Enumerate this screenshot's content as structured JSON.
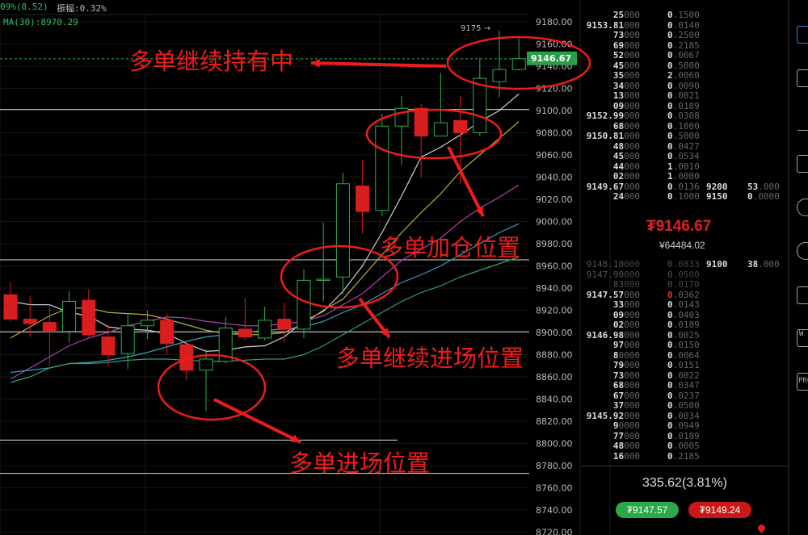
{
  "header": {
    "change": "09%(8.52)",
    "amplitude": "振幅:0.32%",
    "ma30": "MA(30):8970.29"
  },
  "colors": {
    "up": "#2fae4e",
    "down": "#d81e1e",
    "annotation": "#ee1c1c",
    "ma_lines": [
      "#cfcfcf",
      "#b9b040",
      "#b040b0",
      "#3aa0c0",
      "#30a070"
    ]
  },
  "price_axis": {
    "ticks": [
      "9180.00",
      "9160.00",
      "9140.00",
      "9120.00",
      "9100.00",
      "9080.00",
      "9060.00",
      "9040.00",
      "9020.00",
      "9000.00",
      "8980.00",
      "8960.00",
      "8940.00",
      "8920.00",
      "8900.00",
      "8880.00",
      "8860.00",
      "8840.00",
      "8820.00",
      "8800.00",
      "8780.00",
      "8760.00",
      "8740.00",
      "8720.00"
    ],
    "current": "9146.67",
    "high_marker": "9175 →"
  },
  "candles": [
    [
      8934,
      8946,
      8910,
      8912
    ],
    [
      8912,
      8933,
      8896,
      8908
    ],
    [
      8909,
      8925,
      8870,
      8901
    ],
    [
      8901,
      8937,
      8891,
      8928
    ],
    [
      8929,
      8939,
      8896,
      8898
    ],
    [
      8896,
      8907,
      8869,
      8880
    ],
    [
      8881,
      8917,
      8867,
      8906
    ],
    [
      8906,
      8920,
      8894,
      8911
    ],
    [
      8911,
      8917,
      8880,
      8890
    ],
    [
      8889,
      8891,
      8857,
      8866
    ],
    [
      8866,
      8885,
      8829,
      8876
    ],
    [
      8874,
      8914,
      8872,
      8904
    ],
    [
      8903,
      8931,
      8893,
      8896
    ],
    [
      8895,
      8923,
      8893,
      8911
    ],
    [
      8912,
      8927,
      8891,
      8903
    ],
    [
      8903,
      8957,
      8895,
      8947
    ],
    [
      8947,
      8999,
      8928,
      8948
    ],
    [
      8950,
      9044,
      8935,
      9034
    ],
    [
      9032,
      9056,
      8989,
      9009
    ],
    [
      9010,
      9097,
      9005,
      9086
    ],
    [
      9086,
      9113,
      9051,
      9102
    ],
    [
      9102,
      9106,
      9040,
      9077
    ],
    [
      9077,
      9134,
      9077,
      9089
    ],
    [
      9091,
      9113,
      9034,
      9080
    ],
    [
      9080,
      9147,
      9077,
      9129
    ],
    [
      9126,
      9172,
      9112,
      9137
    ],
    [
      9137,
      9165,
      9136,
      9146.67
    ]
  ],
  "ma": [
    [
      8928,
      8925,
      8925,
      8918,
      8915,
      8905,
      8903,
      8902,
      8899,
      8890,
      8883,
      8884,
      8887,
      8888,
      8896,
      8910,
      8919,
      8937,
      8960,
      8990,
      9023,
      9058,
      9067,
      9078,
      9090,
      9100,
      9115
    ],
    [
      8895,
      8905,
      8915,
      8922,
      8922,
      8918,
      8917,
      8916,
      8912,
      8907,
      8902,
      8899,
      8898,
      8898,
      8900,
      8908,
      8920,
      8930,
      8950,
      8970,
      8990,
      9008,
      9025,
      9045,
      9060,
      9075,
      9090
    ],
    [
      8858,
      8868,
      8878,
      8888,
      8895,
      8900,
      8906,
      8910,
      8914,
      8913,
      8910,
      8908,
      8906,
      8906,
      8908,
      8910,
      8915,
      8925,
      8935,
      8950,
      8965,
      8975,
      8985,
      9000,
      9012,
      9022,
      9033
    ],
    [
      8864,
      8866,
      8868,
      8872,
      8873,
      8875,
      8878,
      8882,
      8887,
      8892,
      8896,
      8898,
      8900,
      8902,
      8903,
      8905,
      8910,
      8918,
      8925,
      8935,
      8945,
      8952,
      8960,
      8970,
      8980,
      8990,
      8998
    ],
    [
      8855,
      8860,
      8868,
      8872,
      8872,
      8873,
      8875,
      8876,
      8876,
      8875,
      8874,
      8874,
      8875,
      8876,
      8876,
      8880,
      8888,
      8898,
      8908,
      8918,
      8928,
      8936,
      8942,
      8950,
      8956,
      8962,
      8968
    ]
  ],
  "levels": [
    9101,
    8965.5,
    8900.6,
    8803,
    8773
  ],
  "annotations": [
    "多单继续持有中",
    "多单加仓位置",
    "多单继续进场位置",
    "多单进场位置"
  ],
  "orderbook": {
    "asks": [
      [
        [
          "25",
          "000"
        ],
        [
          "0",
          ".1500"
        ]
      ],
      [
        [
          "9153.81",
          "000"
        ],
        [
          "0",
          ".0140"
        ]
      ],
      [
        [
          "73",
          "000"
        ],
        [
          "0",
          ".2500"
        ]
      ],
      [
        [
          "69",
          "000"
        ],
        [
          "0",
          ".2185"
        ]
      ],
      [
        [
          "52",
          "000"
        ],
        [
          "0",
          ".0067"
        ]
      ],
      [
        [
          "45",
          "000"
        ],
        [
          "0",
          ".5000"
        ]
      ],
      [
        [
          "35",
          "000"
        ],
        [
          "2",
          ".0060"
        ]
      ],
      [
        [
          "34",
          "000"
        ],
        [
          "0",
          ".0090"
        ]
      ],
      [
        [
          "13",
          "000"
        ],
        [
          "0",
          ".0021"
        ]
      ],
      [
        [
          "09",
          "000"
        ],
        [
          "0",
          ".0189"
        ]
      ],
      [
        [
          "9152.99",
          "000"
        ],
        [
          "0",
          ".0308"
        ]
      ],
      [
        [
          "68",
          "000"
        ],
        [
          "0",
          ".1000"
        ]
      ],
      [
        [
          "9150.81",
          "000"
        ],
        [
          "0",
          ".5000"
        ]
      ],
      [
        [
          "48",
          "000"
        ],
        [
          "0",
          ".0427"
        ]
      ],
      [
        [
          "45",
          "000"
        ],
        [
          "0",
          ".0534"
        ]
      ],
      [
        [
          "44",
          "000"
        ],
        [
          "1",
          ".0010"
        ]
      ],
      [
        [
          "02",
          "000"
        ],
        [
          "1",
          ".0000"
        ]
      ],
      [
        [
          "9149.67",
          "000"
        ],
        [
          "0",
          ".0136"
        ]
      ],
      [
        [
          "24",
          "000"
        ],
        [
          "0",
          ".1000"
        ]
      ]
    ],
    "ask_levels": [
      [
        "9200",
        "53",
        ".000"
      ],
      [
        "9150",
        "0",
        ".0000"
      ]
    ],
    "last_price": "₮9146.67",
    "cny_price": "¥64484.02",
    "bids": [
      [
        [
          "9148.10",
          "000"
        ],
        [
          "0",
          ".0833"
        ]
      ],
      [
        [
          "9147.90",
          "000"
        ],
        [
          "0",
          ".0500"
        ]
      ],
      [
        [
          "83",
          "000"
        ],
        [
          "0",
          ".0170"
        ]
      ],
      [
        [
          "9147.57",
          "000"
        ],
        [
          "0",
          ".0362"
        ]
      ],
      [
        [
          "33",
          "000"
        ],
        [
          "0",
          ".0143"
        ]
      ],
      [
        [
          "09",
          "000"
        ],
        [
          "0",
          ".0403"
        ]
      ],
      [
        [
          "02",
          "000"
        ],
        [
          "0",
          ".0189"
        ]
      ],
      [
        [
          "9146.98",
          "000"
        ],
        [
          "0",
          ".0025"
        ]
      ],
      [
        [
          "97",
          "000"
        ],
        [
          "0",
          ".0150"
        ]
      ],
      [
        [
          "8",
          "0000"
        ],
        [
          "0",
          ".0064"
        ]
      ],
      [
        [
          "79",
          "000"
        ],
        [
          "0",
          ".0151"
        ]
      ],
      [
        [
          "73",
          "000"
        ],
        [
          "0",
          ".0022"
        ]
      ],
      [
        [
          "68",
          "000"
        ],
        [
          "0",
          ".0347"
        ]
      ],
      [
        [
          "67",
          "000"
        ],
        [
          "0",
          ".0237"
        ]
      ],
      [
        [
          "37",
          "000"
        ],
        [
          "0",
          ".0500"
        ]
      ],
      [
        [
          "9145.92",
          "000"
        ],
        [
          "0",
          ".0034"
        ]
      ],
      [
        [
          "9",
          "0000"
        ],
        [
          "0",
          ".0949"
        ]
      ],
      [
        [
          "77",
          "000"
        ],
        [
          "0",
          ".0189"
        ]
      ],
      [
        [
          "48",
          "000"
        ],
        [
          "0",
          ".0005"
        ]
      ],
      [
        [
          "16",
          "000"
        ],
        [
          "0",
          ".2185"
        ]
      ]
    ],
    "bid_levels": [
      [
        "9100",
        "38",
        ".000"
      ]
    ],
    "change": "335.62(3.81%)",
    "buy_price": "₮9147.57",
    "sell_price": "₮9149.24"
  },
  "sidebar": {
    "icons": [
      "chart-icon",
      "order-list-icon",
      "bar-chart-icon",
      "document-icon",
      "clock-icon",
      "chat-icon",
      "list-icon",
      "window-icon",
      "pro-icon"
    ],
    "pro_label": "PRO",
    "window_label": "W"
  }
}
